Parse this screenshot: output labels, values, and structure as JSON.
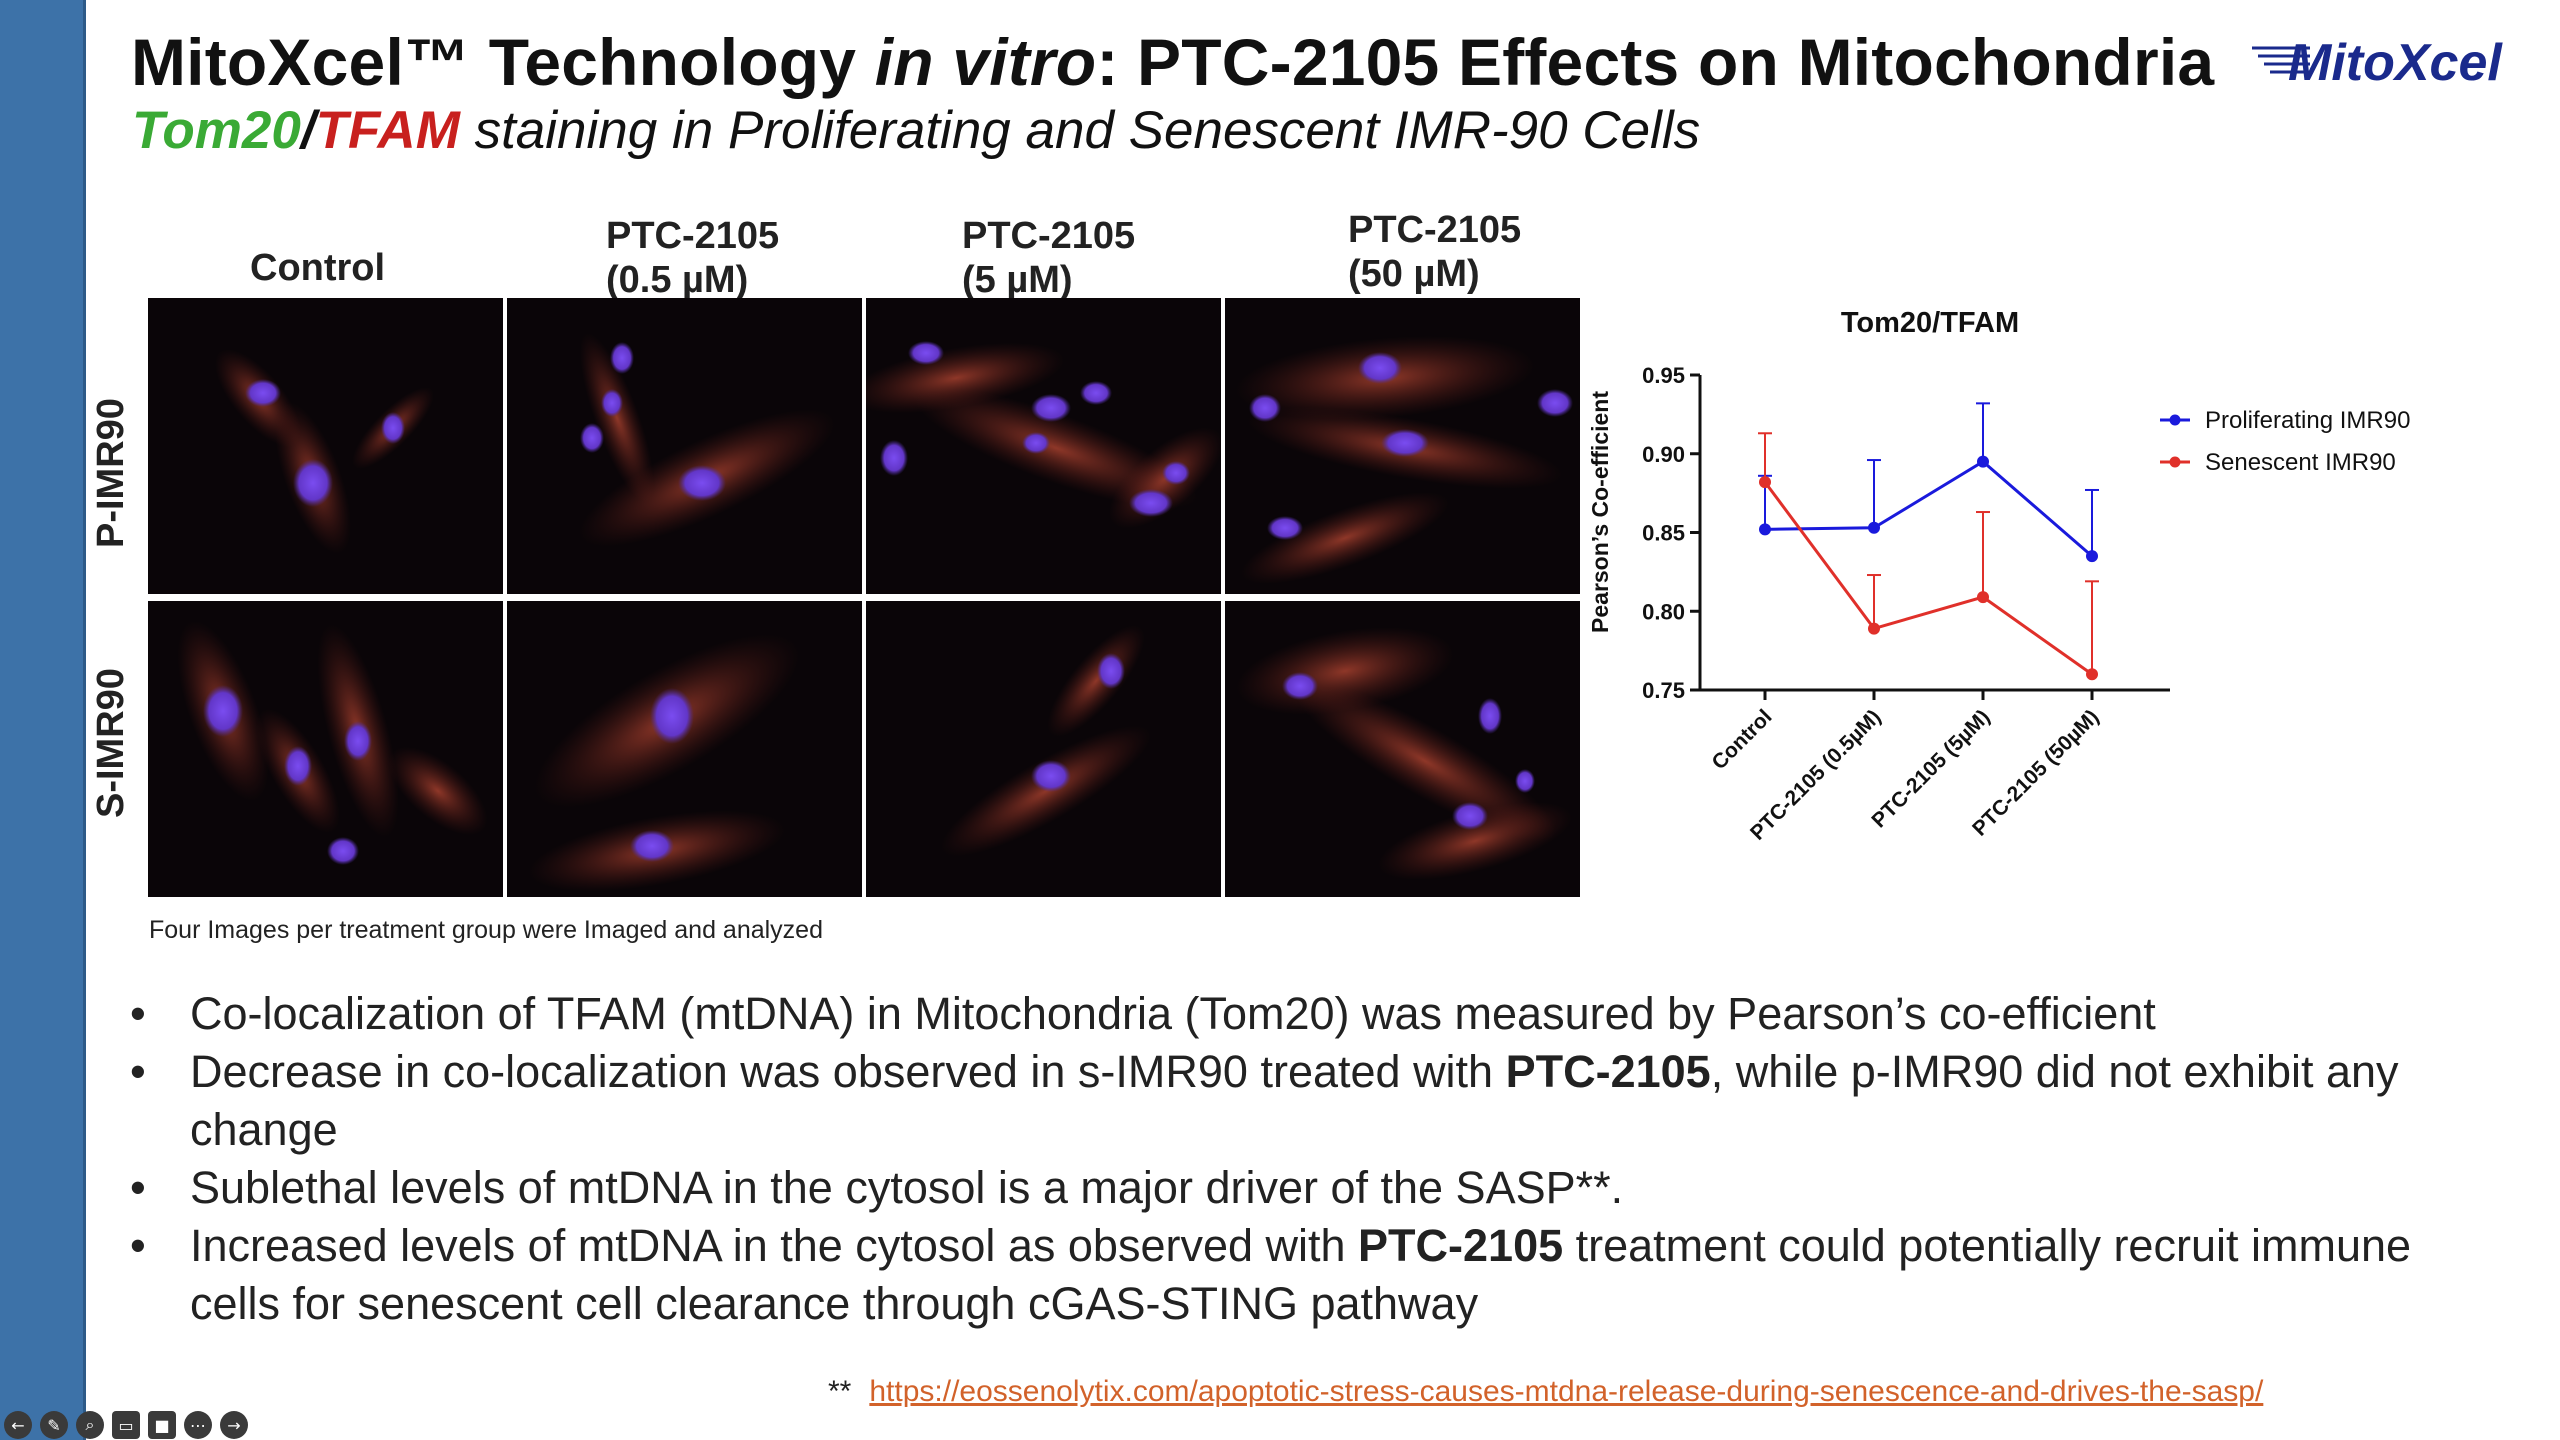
{
  "slide": {
    "title_part1": "MitoXcel™ Technology ",
    "title_italic": "in vitro",
    "title_part2": ": PTC-2105 Effects on Mitochondria",
    "logo_text": "MitoXcel",
    "subtitle_green": "Tom20",
    "subtitle_slash": "/",
    "subtitle_red": "TFAM",
    "subtitle_rest": " staining in Proliferating and Senescent IMR-90 Cells"
  },
  "grid": {
    "columns": [
      {
        "line1": "Control",
        "line2": ""
      },
      {
        "line1": "PTC-2105",
        "line2": "(0.5 µM)"
      },
      {
        "line1": "PTC-2105",
        "line2": "(5 µM)"
      },
      {
        "line1": "PTC-2105",
        "line2": "(50 µM)"
      }
    ],
    "rows": [
      "P-IMR90",
      "S-IMR90"
    ],
    "caption": "Four Images per treatment group were Imaged and analyzed"
  },
  "chart_data": {
    "type": "line",
    "title": "Tom20/TFAM",
    "ylabel": "Pearson’s Co-efficient",
    "xlabel": "",
    "categories": [
      "Control",
      "PTC-2105 (0.5µM)",
      "PTC-2105 (5µM)",
      "PTC-2105 (50µM)"
    ],
    "ylim": [
      0.75,
      0.95
    ],
    "yticks": [
      "0.95",
      "0.90",
      "0.85",
      "0.80",
      "0.75"
    ],
    "legend_position": "top-right",
    "grid": false,
    "series": [
      {
        "name": "Proliferating IMR90",
        "color": "#1a1adc",
        "values": [
          0.852,
          0.853,
          0.895,
          0.835
        ],
        "err_up": [
          0.034,
          0.043,
          0.037,
          0.042
        ]
      },
      {
        "name": "Senescent IMR90",
        "color": "#e0302a",
        "values": [
          0.882,
          0.789,
          0.809,
          0.76
        ],
        "err_up": [
          0.031,
          0.034,
          0.054,
          0.059
        ]
      }
    ]
  },
  "bullets": {
    "b1": "Co-localization of TFAM (mtDNA) in Mitochondria (Tom20) was measured by Pearson’s co-efficient",
    "b2_a": "Decrease in co-localization was observed in s-IMR90 treated with ",
    "b2_bold": "PTC-2105",
    "b2_b": ", while p-IMR90 did not exhibit any change",
    "b3": "Sublethal levels of mtDNA in the cytosol is a major driver of the SASP**.",
    "b4_a": "Increased levels of mtDNA in the cytosol as observed with ",
    "b4_bold": "PTC-2105",
    "b4_b": " treatment could potentially recruit immune cells for senescent cell clearance through cGAS-STING pathway"
  },
  "footnote": {
    "marker": "**",
    "link": "https://eossenolytix.com/apoptotic-stress-causes-mtdna-release-during-senescence-and-drives-the-sasp/"
  },
  "toolbar": {
    "icons": [
      "back-icon",
      "pen-icon",
      "zoom-icon",
      "captions-icon",
      "camera-icon",
      "more-icon",
      "forward-icon"
    ]
  }
}
